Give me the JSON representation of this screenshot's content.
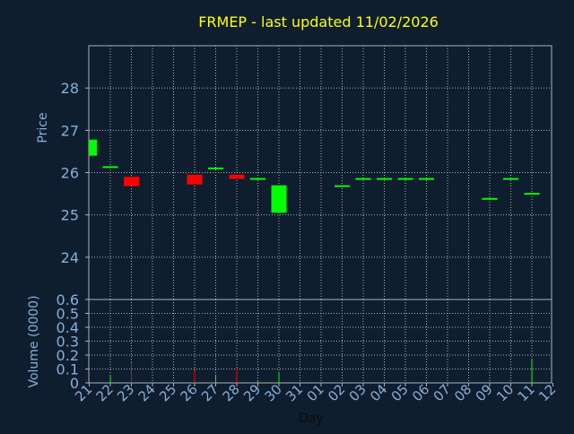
{
  "chart_data": {
    "title": "FRMEP - last updated 11/02/2026",
    "type": "candlestick",
    "xlabel": "Day",
    "x_tick_labels": [
      "21",
      "22",
      "23",
      "24",
      "25",
      "26",
      "27",
      "28",
      "29",
      "30",
      "31",
      "01",
      "02",
      "03",
      "04",
      "05",
      "06",
      "07",
      "08",
      "09",
      "10",
      "11",
      "12"
    ],
    "price_panel": {
      "ylabel": "Price",
      "ylim": [
        23.0,
        29.0
      ],
      "y_ticks": [
        24,
        25,
        26,
        27,
        28
      ],
      "candles": [
        {
          "day": "21",
          "open": 26.4,
          "close": 26.78,
          "color": "#00ff00"
        },
        {
          "day": "22",
          "open": 26.13,
          "close": 26.13,
          "color": "#00ff00"
        },
        {
          "day": "23",
          "open": 25.9,
          "close": 25.68,
          "color": "#ff0000"
        },
        {
          "day": "26",
          "open": 25.95,
          "close": 25.72,
          "color": "#ff0000"
        },
        {
          "day": "27",
          "open": 26.1,
          "close": 26.1,
          "color": "#00ff00"
        },
        {
          "day": "28",
          "open": 25.95,
          "close": 25.85,
          "color": "#ff0000"
        },
        {
          "day": "29",
          "open": 25.85,
          "close": 25.85,
          "color": "#00ff00"
        },
        {
          "day": "30",
          "open": 25.05,
          "close": 25.7,
          "color": "#00ff00"
        },
        {
          "day": "02",
          "open": 25.68,
          "close": 25.68,
          "color": "#00ff00"
        },
        {
          "day": "03",
          "open": 25.85,
          "close": 25.85,
          "color": "#00ff00"
        },
        {
          "day": "04",
          "open": 25.85,
          "close": 25.85,
          "color": "#00ff00"
        },
        {
          "day": "05",
          "open": 25.85,
          "close": 25.85,
          "color": "#00ff00"
        },
        {
          "day": "06",
          "open": 25.85,
          "close": 25.85,
          "color": "#00ff00"
        },
        {
          "day": "09",
          "open": 25.38,
          "close": 25.38,
          "color": "#00ff00"
        },
        {
          "day": "10",
          "open": 25.85,
          "close": 25.85,
          "color": "#00ff00"
        },
        {
          "day": "11",
          "open": 25.5,
          "close": 25.5,
          "color": "#00ff00"
        }
      ]
    },
    "volume_panel": {
      "ylabel": "Volume (0000)",
      "ylim": [
        0,
        0.6
      ],
      "y_tick_labels": [
        "0",
        "0.1",
        "0.2",
        "0.3",
        "0.4",
        "0.5",
        "0.6"
      ],
      "bars": [
        {
          "day": "22",
          "value": 0.05,
          "color": "#00ff00"
        },
        {
          "day": "23",
          "value": 0.15,
          "color": "#ff0000"
        },
        {
          "day": "26",
          "value": 0.09,
          "color": "#ff0000"
        },
        {
          "day": "27",
          "value": 0.06,
          "color": "#00ff00"
        },
        {
          "day": "28",
          "value": 0.11,
          "color": "#ff0000"
        },
        {
          "day": "29",
          "value": 0.02,
          "color": "#00ff00"
        },
        {
          "day": "30",
          "value": 0.08,
          "color": "#00ff00"
        },
        {
          "day": "11",
          "value": 0.17,
          "color": "#00ff00"
        }
      ]
    },
    "grid": true,
    "colors": {
      "background": "#0e1e2f",
      "title": "#ffff00",
      "axis_text": "#8aaed6",
      "grid": "#b0b0b0",
      "up": "#00ff00",
      "down": "#ff0000"
    }
  }
}
